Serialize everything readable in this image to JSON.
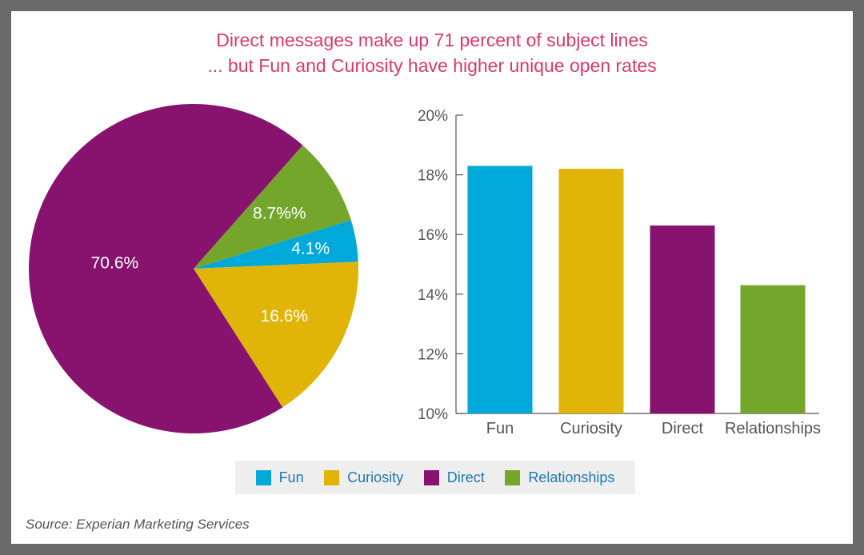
{
  "title_line1": "Direct messages make up 71 percent of subject lines",
  "title_line2": "... but Fun and Curiosity have higher unique open rates",
  "source": "Source: Experian Marketing Services",
  "colors": {
    "fun": "#00a9d9",
    "curiosity": "#e1b408",
    "direct": "#88136f",
    "relationships": "#73a62b",
    "title": "#d83a6a"
  },
  "legend": [
    {
      "label": "Fun",
      "color": "#00a9d9"
    },
    {
      "label": "Curiosity",
      "color": "#e1b408"
    },
    {
      "label": "Direct",
      "color": "#88136f"
    },
    {
      "label": "Relationships",
      "color": "#73a62b"
    }
  ],
  "chart_data": [
    {
      "type": "pie",
      "slices": [
        {
          "category": "Fun",
          "value": 4.1,
          "label": "4.1%",
          "color": "#00a9d9"
        },
        {
          "category": "Curiosity",
          "value": 16.6,
          "label": "16.6%",
          "color": "#e1b408"
        },
        {
          "category": "Direct",
          "value": 70.6,
          "label": "70.6%",
          "color": "#88136f"
        },
        {
          "category": "Relationships",
          "value": 8.7,
          "label": "8.7%%",
          "color": "#73a62b"
        }
      ]
    },
    {
      "type": "bar",
      "categories": [
        "Fun",
        "Curiosity",
        "Direct",
        "Relationships"
      ],
      "values": [
        18.3,
        18.2,
        16.3,
        14.3
      ],
      "colors": [
        "#00a9d9",
        "#e1b408",
        "#88136f",
        "#73a62b"
      ],
      "ylim": [
        10,
        20
      ],
      "yticks": [
        "10%",
        "12%",
        "14%",
        "16%",
        "18%",
        "20%"
      ],
      "ytick_values": [
        10,
        12,
        14,
        16,
        18,
        20
      ],
      "grid": false
    }
  ]
}
